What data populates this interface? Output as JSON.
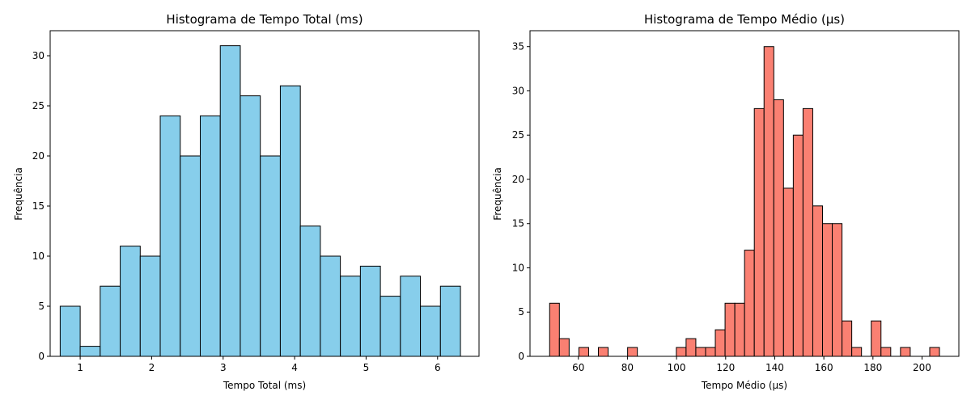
{
  "chart_data": [
    {
      "type": "bar",
      "subtype": "histogram",
      "title": "Histograma de Tempo Total (ms)",
      "xlabel": "Tempo Total (ms)",
      "ylabel": "Frequência",
      "bar_color": "#87ceeb",
      "edge_color": "#000000",
      "xlim": [
        0.58,
        6.58
      ],
      "ylim": [
        0,
        32.5
      ],
      "xticks": [
        1,
        2,
        3,
        4,
        5,
        6
      ],
      "yticks": [
        0,
        5,
        10,
        15,
        20,
        25,
        30
      ],
      "grid": false,
      "bin_edges": [
        0.72,
        1.0,
        1.28,
        1.56,
        1.84,
        2.12,
        2.4,
        2.68,
        2.96,
        3.24,
        3.52,
        3.8,
        4.08,
        4.36,
        4.64,
        4.92,
        5.2,
        5.48,
        5.76,
        6.04,
        6.32
      ],
      "values": [
        5,
        1,
        7,
        11,
        10,
        24,
        20,
        24,
        31,
        26,
        20,
        27,
        13,
        10,
        8,
        9,
        6,
        8,
        5,
        7
      ]
    },
    {
      "type": "bar",
      "subtype": "histogram",
      "title": "Histograma de Tempo Médio (μs)",
      "xlabel": "Tempo Médio (μs)",
      "ylabel": "Frequência",
      "bar_color": "#fa8072",
      "edge_color": "#000000",
      "xlim": [
        40.3,
        215.0
      ],
      "ylim": [
        0,
        36.8
      ],
      "xticks": [
        60,
        80,
        100,
        120,
        140,
        160,
        180,
        200
      ],
      "yticks": [
        0,
        5,
        10,
        15,
        20,
        25,
        30,
        35
      ],
      "grid": false,
      "bin_edges": [
        48.3,
        52.27,
        56.24,
        60.21,
        64.18,
        68.15,
        72.12,
        76.09,
        80.06,
        84.03,
        88.0,
        91.97,
        95.94,
        99.91,
        103.88,
        107.85,
        111.82,
        115.79,
        119.76,
        123.73,
        127.7,
        131.67,
        135.64,
        139.61,
        143.58,
        147.55,
        151.52,
        155.49,
        159.46,
        163.43,
        167.4,
        171.37,
        175.34,
        179.31,
        183.28,
        187.25,
        191.22,
        195.19,
        199.16,
        203.13,
        207.1
      ],
      "values": [
        6,
        2,
        0,
        1,
        0,
        1,
        0,
        0,
        1,
        0,
        0,
        0,
        0,
        1,
        2,
        1,
        1,
        3,
        6,
        6,
        12,
        28,
        35,
        29,
        19,
        25,
        28,
        17,
        15,
        15,
        4,
        1,
        0,
        4,
        1,
        0,
        1,
        0,
        0,
        1
      ]
    }
  ]
}
